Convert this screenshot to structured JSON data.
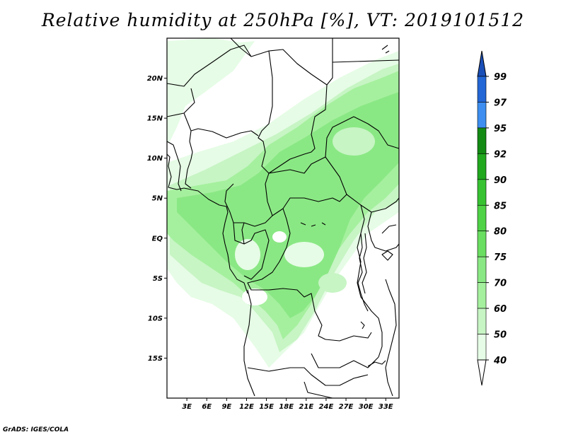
{
  "title": "Relative humidity at 250hPa [%], VT: 2019101512",
  "credit": "GrADS: IGES/COLA",
  "map": {
    "variable": "Relative humidity",
    "level": "250hPa",
    "units": "%",
    "valid_time": "2019101512",
    "lon_range": [
      0,
      35
    ],
    "lat_range": [
      -20,
      25
    ],
    "lat_ticks": [
      {
        "value": 20,
        "label": "20N"
      },
      {
        "value": 15,
        "label": "15N"
      },
      {
        "value": 10,
        "label": "10N"
      },
      {
        "value": 5,
        "label": "5N"
      },
      {
        "value": 0,
        "label": "EQ"
      },
      {
        "value": -5,
        "label": "5S"
      },
      {
        "value": -10,
        "label": "10S"
      },
      {
        "value": -15,
        "label": "15S"
      }
    ],
    "lon_ticks": [
      {
        "value": 3,
        "label": "3E"
      },
      {
        "value": 6,
        "label": "6E"
      },
      {
        "value": 9,
        "label": "9E"
      },
      {
        "value": 12,
        "label": "12E"
      },
      {
        "value": 15,
        "label": "15E"
      },
      {
        "value": 18,
        "label": "18E"
      },
      {
        "value": 21,
        "label": "21E"
      },
      {
        "value": 24,
        "label": "24E"
      },
      {
        "value": 27,
        "label": "27E"
      },
      {
        "value": 30,
        "label": "30E"
      },
      {
        "value": 33,
        "label": "33E"
      }
    ]
  },
  "colorbar": {
    "levels": [
      {
        "label": "40",
        "color": "#ffffff"
      },
      {
        "label": "50",
        "color": "#e6fce6"
      },
      {
        "label": "60",
        "color": "#c7f5c4"
      },
      {
        "label": "70",
        "color": "#a5f09e"
      },
      {
        "label": "75",
        "color": "#8ae884"
      },
      {
        "label": "80",
        "color": "#6ade61"
      },
      {
        "label": "85",
        "color": "#4fd246"
      },
      {
        "label": "90",
        "color": "#37c232"
      },
      {
        "label": "92",
        "color": "#21a81e"
      },
      {
        "label": "95",
        "color": "#138a13"
      },
      {
        "label": "97",
        "color": "#3d8ef0"
      },
      {
        "label": "99",
        "color": "#2366d6"
      }
    ],
    "under_color": "#ffffff",
    "over_color": "#1a4fb8"
  }
}
